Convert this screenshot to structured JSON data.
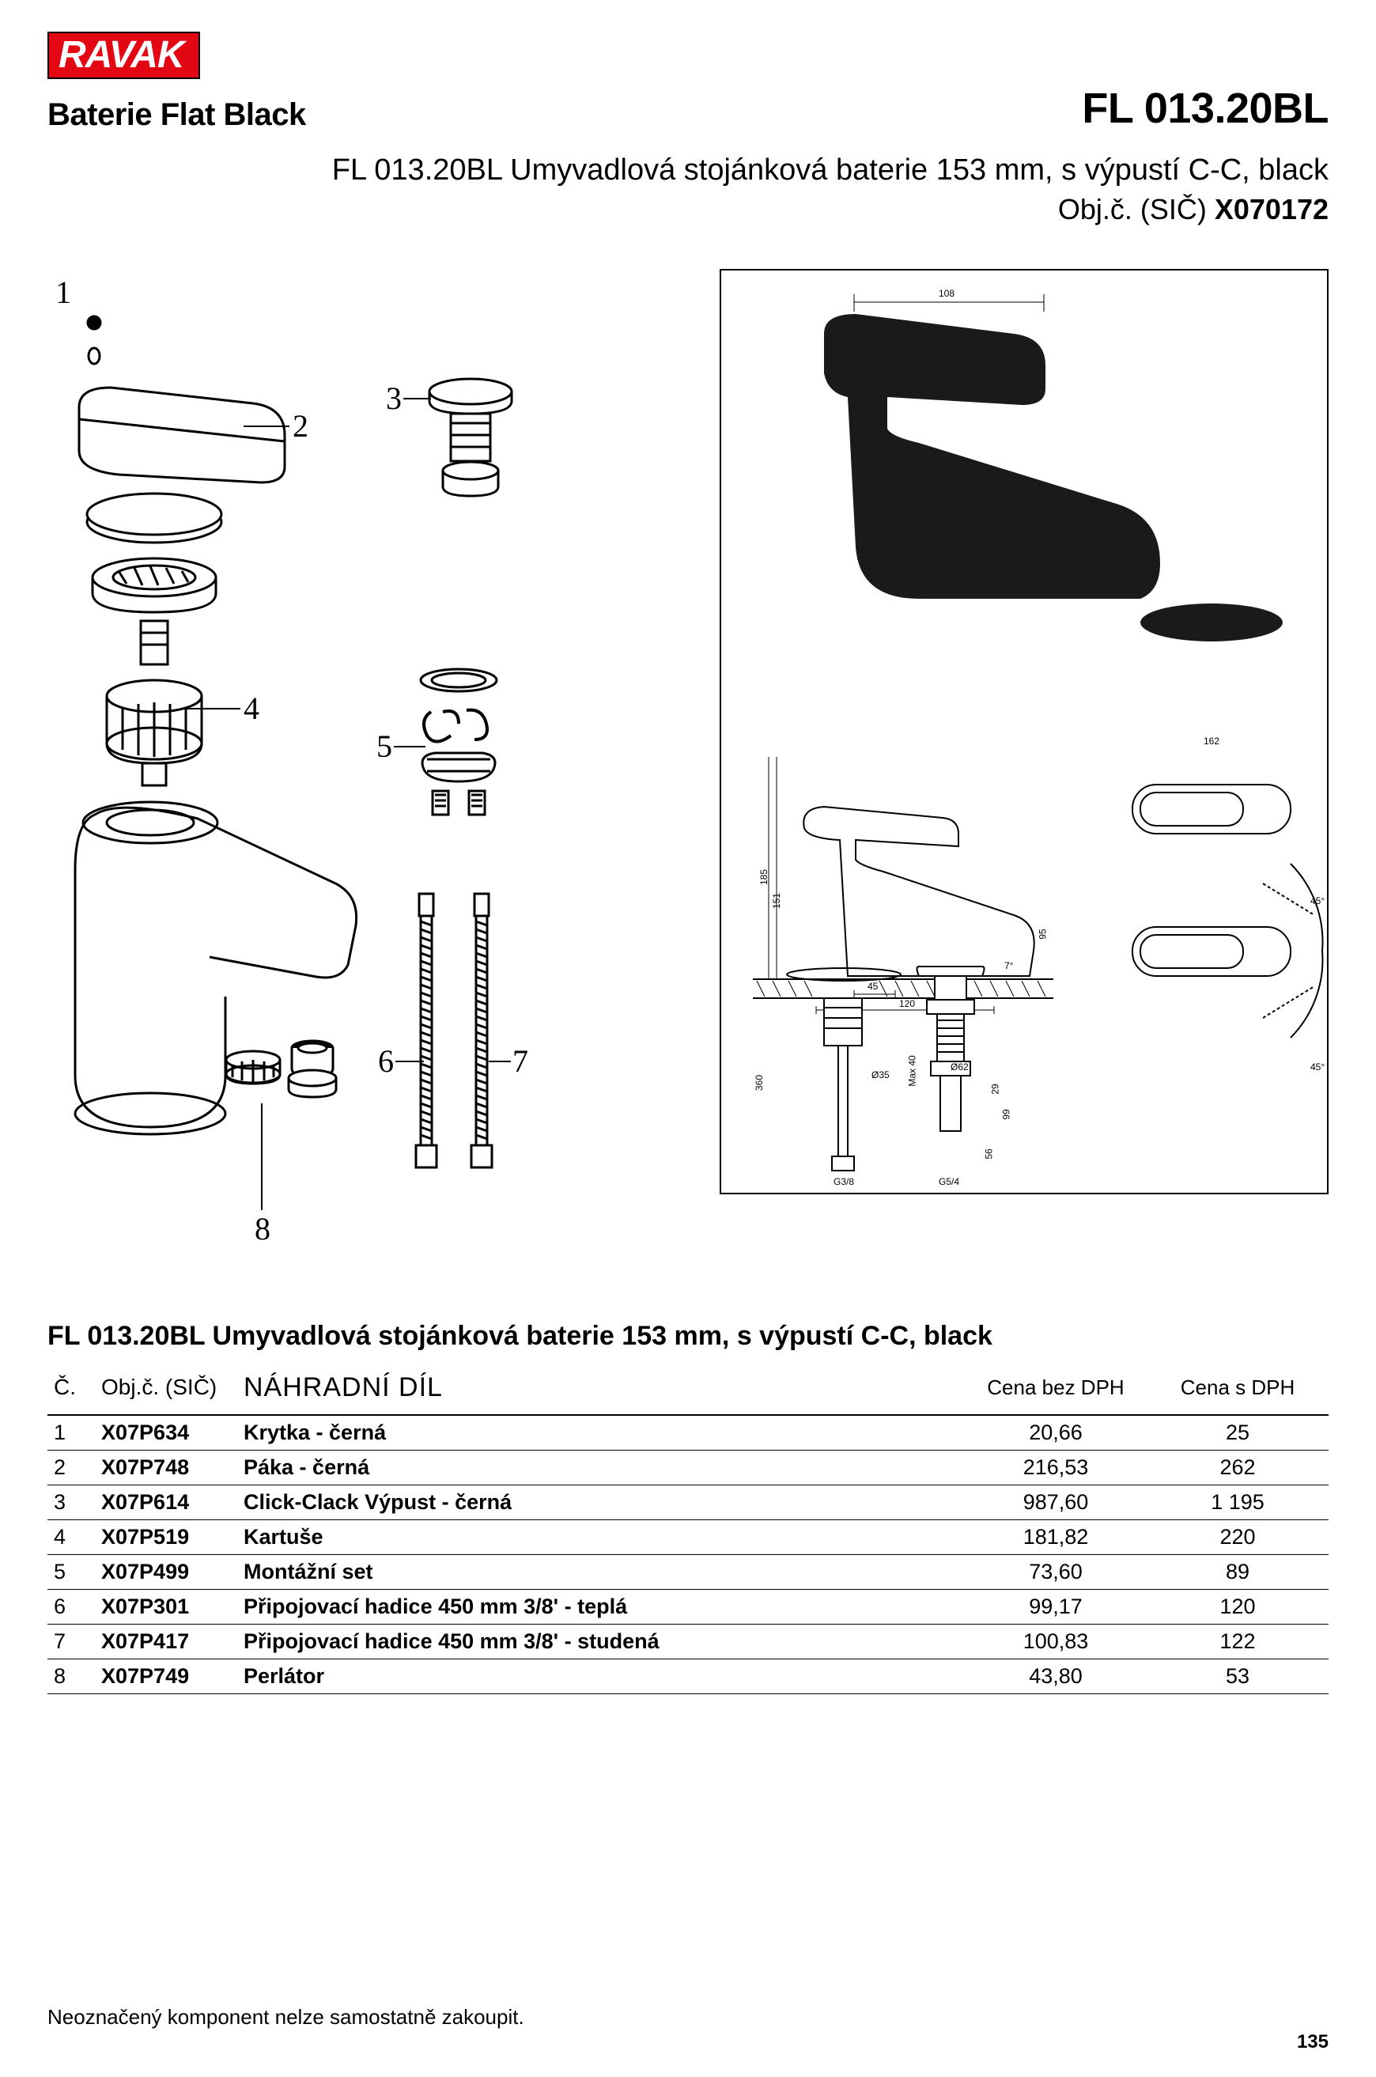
{
  "brand": "RAVAK",
  "brand_bg": "#e30613",
  "brand_fg": "#ffffff",
  "series": "Baterie Flat Black",
  "product_code": "FL 013.20BL",
  "description": "FL 013.20BL Umyvadlová stojánková baterie 153 mm, s výpustí C-C, black",
  "obj_label": "Obj.č. (SIČ)",
  "obj_number": "X070172",
  "section_title": "FL 013.20BL Umyvadlová stojánková baterie 153 mm, s výpustí C-C, black",
  "table": {
    "headers": {
      "num": "Č.",
      "obj": "Obj.č. (SIČ)",
      "name": "NÁHRADNÍ DÍL",
      "price1": "Cena bez DPH",
      "price2": "Cena s DPH"
    },
    "rows": [
      {
        "num": "1",
        "obj": "X07P634",
        "name": "Krytka - černá",
        "p1": "20,66",
        "p2": "25"
      },
      {
        "num": "2",
        "obj": "X07P748",
        "name": "Páka - černá",
        "p1": "216,53",
        "p2": "262"
      },
      {
        "num": "3",
        "obj": "X07P614",
        "name": "Click-Clack Výpust - černá",
        "p1": "987,60",
        "p2": "1 195"
      },
      {
        "num": "4",
        "obj": "X07P519",
        "name": "Kartuše",
        "p1": "181,82",
        "p2": "220"
      },
      {
        "num": "5",
        "obj": "X07P499",
        "name": "Montážní set",
        "p1": "73,60",
        "p2": "89"
      },
      {
        "num": "6",
        "obj": "X07P301",
        "name": "Připojovací hadice 450 mm 3/8' - teplá",
        "p1": "99,17",
        "p2": "120"
      },
      {
        "num": "7",
        "obj": "X07P417",
        "name": "Připojovací hadice 450 mm 3/8' - studená",
        "p1": "100,83",
        "p2": "122"
      },
      {
        "num": "8",
        "obj": "X07P749",
        "name": "Perlátor",
        "p1": "43,80",
        "p2": "53"
      }
    ]
  },
  "callouts": {
    "c1": "1",
    "c2": "2",
    "c3": "3",
    "c4": "4",
    "c5": "5",
    "c6": "6",
    "c7": "7",
    "c8": "8"
  },
  "tech_dims": {
    "d108": "108",
    "d162": "162",
    "d185": "185",
    "d151": "151",
    "d45_1": "45",
    "d120": "120",
    "d7deg": "7°",
    "d45deg_1": "45°",
    "d45deg_2": "45°",
    "d95": "95",
    "d360": "360",
    "d_o35": "Ø35",
    "d_max40": "Max 40",
    "d_o62": "Ø62",
    "d29": "29",
    "d99": "99",
    "d56": "56",
    "d_g38": "G3/8",
    "d_g54": "G5/4"
  },
  "footnote": "Neoznačený komponent nelze samostatně zakoupit.",
  "page_number": "135"
}
